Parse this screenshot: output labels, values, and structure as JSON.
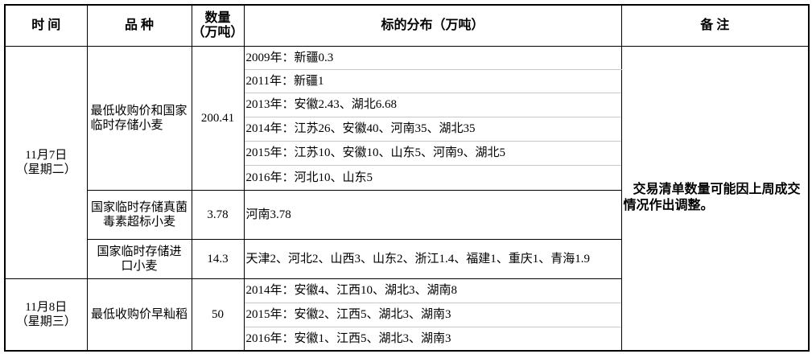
{
  "headers": {
    "time": "时 间",
    "variety": "品 种",
    "qty_line1": "数量",
    "qty_line2": "（万吨）",
    "dist": "标的分布（万吨）",
    "note": "备 注"
  },
  "groups": [
    {
      "date": "11月7日",
      "weekday": "（星期二）",
      "items": [
        {
          "variety": "最低收购价和国家临时存储小麦",
          "qty": "200.41",
          "dist": [
            "2009年：新疆0.3",
            "2011年：新疆1",
            "2013年：安徽2.43、湖北6.68",
            "2014年：江苏26、安徽40、河南35、湖北35",
            "2015年：江苏10、安徽10、山东5、河南9、湖北5",
            "2016年：河北10、山东5"
          ]
        },
        {
          "variety": "国家临时存储真菌毒素超标小麦",
          "qty": "3.78",
          "dist": [
            "河南3.78"
          ]
        },
        {
          "variety": "国家临时存储进口小麦",
          "qty": "14.3",
          "dist": [
            "天津2、河北2、山西3、山东2、浙江1.4、福建1、重庆1、青海1.9"
          ]
        }
      ]
    },
    {
      "date": "11月8日",
      "weekday": "（星期三）",
      "items": [
        {
          "variety": "最低收购价早籼稻",
          "qty": "50",
          "dist": [
            "2014年：安徽4、江西10、湖北3、湖南8",
            "2015年：安徽2、江西5、湖北3、湖南3",
            "2016年：安徽1、江西5、湖北3、湖南3"
          ]
        }
      ]
    }
  ],
  "note": "交易清单数量可能因上周成交情况作出调整。"
}
